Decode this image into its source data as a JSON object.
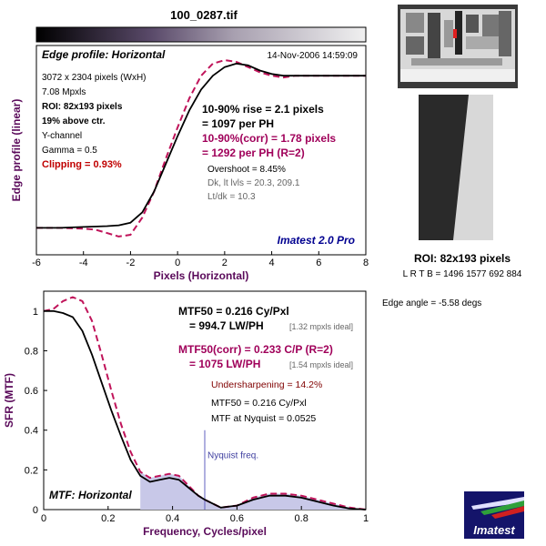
{
  "file_title": "100_0287.tif",
  "top_chart": {
    "panel_title": "Edge profile: Horizontal",
    "date": "14-Nov-2006 14:59:09",
    "info_lines": [
      {
        "text": "3072 x 2304 pixels (WxH)",
        "style": "normal"
      },
      {
        "text": "7.08 Mpxls",
        "style": "normal"
      },
      {
        "text": "ROI: 82x193 pixels",
        "style": "bold"
      },
      {
        "text": "19% above ctr.",
        "style": "bold"
      },
      {
        "text": "Y-channel",
        "style": "normal"
      },
      {
        "text": "Gamma = 0.5",
        "style": "normal"
      },
      {
        "text": "Clipping =  0.93%",
        "style": "red-bold"
      }
    ],
    "rise_lines": [
      {
        "text": "10-90% rise = 2.1 pixels",
        "style": "black-bold"
      },
      {
        "text": "= 1097 per PH",
        "style": "black-bold"
      },
      {
        "text": "10-90%(corr) = 1.78 pixels",
        "style": "magenta-bold"
      },
      {
        "text": "= 1292 per PH  (R=2)",
        "style": "magenta-bold"
      }
    ],
    "stats_lines": [
      {
        "text": "Overshoot = 8.45%",
        "style": "black"
      },
      {
        "text": "Dk, lt lvls = 20.3, 209.1",
        "style": "gray"
      },
      {
        "text": "Lt/dk = 10.3",
        "style": "gray"
      }
    ],
    "brand": "Imatest 2.0 Pro",
    "xlabel": "Pixels (Horizontal)",
    "ylabel": "Edge profile (linear)"
  },
  "bottom_chart": {
    "panel_title": "MTF: Horizontal",
    "nyquist_label": "Nyquist freq.",
    "xlabel": "Frequency, Cycles/pixel",
    "ylabel": "SFR (MTF)",
    "lines": [
      {
        "text": "MTF50 = 0.216 Cy/Pxl",
        "style": "black-bold"
      },
      {
        "text": "= 994.7 LW/PH",
        "style": "black-bold",
        "suffix": "[1.32 mpxls ideal]"
      },
      {
        "text": "MTF50(corr) = 0.233 C/P  (R=2)",
        "style": "magenta-bold"
      },
      {
        "text": "= 1075 LW/PH",
        "style": "magenta-bold",
        "suffix": "[1.54 mpxls ideal]"
      },
      {
        "text": "Undersharpening = 14.2%",
        "style": "darkred"
      },
      {
        "text": "MTF50 = 0.216 Cy/Pxl",
        "style": "black"
      },
      {
        "text": "MTF at Nyquist = 0.0525",
        "style": "black"
      }
    ]
  },
  "side_panel": {
    "roi_label": "ROI: 82x193 pixels",
    "lrtb": "L R  T B = 1496 1577  692 884",
    "edge_angle": "Edge angle = -5.58 degs",
    "logo_text": "Imatest"
  },
  "colors": {
    "measured": "#000000",
    "corrected": "#c0145a",
    "nyquist_line": "#6060c0",
    "mtf_fill": "#c8c8e8",
    "clipping_text": "#c00000",
    "magenta_text": "#a0005a"
  },
  "chart_data": [
    {
      "type": "line",
      "name": "edge-profile",
      "xlim": [
        -6,
        8
      ],
      "x_ticks": [
        "-6",
        "-4",
        "-2",
        "0",
        "2",
        "4",
        "6",
        "8"
      ],
      "x_tick_values": [
        -6,
        -4,
        -2,
        0,
        2,
        4,
        6,
        8
      ],
      "y_normalized_range": [
        0,
        1
      ],
      "grid": false,
      "series": [
        {
          "name": "measured",
          "x": [
            -6,
            -5,
            -4,
            -3,
            -2.5,
            -2,
            -1.5,
            -1,
            -0.5,
            0,
            0.5,
            1,
            1.5,
            2,
            2.5,
            3,
            3.5,
            4,
            4.5,
            5,
            6,
            7,
            8
          ],
          "y": [
            0.04,
            0.04,
            0.045,
            0.05,
            0.055,
            0.07,
            0.13,
            0.25,
            0.41,
            0.57,
            0.72,
            0.84,
            0.92,
            0.97,
            0.99,
            0.98,
            0.95,
            0.93,
            0.92,
            0.92,
            0.92,
            0.92,
            0.92
          ]
        },
        {
          "name": "corrected",
          "x": [
            -6,
            -5,
            -4,
            -3.5,
            -3,
            -2.5,
            -2,
            -1.5,
            -1,
            -0.5,
            0,
            0.5,
            1,
            1.5,
            2,
            2.5,
            3,
            3.5,
            4,
            4.5,
            5,
            6,
            7,
            8
          ],
          "y": [
            0.04,
            0.04,
            0.035,
            0.03,
            0.01,
            -0.01,
            0.0,
            0.1,
            0.25,
            0.44,
            0.62,
            0.79,
            0.92,
            0.99,
            1.01,
            1.0,
            0.97,
            0.94,
            0.92,
            0.91,
            0.92,
            0.92,
            0.92,
            0.92
          ]
        }
      ]
    },
    {
      "type": "line",
      "name": "mtf",
      "xlim": [
        0,
        1
      ],
      "ylim": [
        0,
        1.1
      ],
      "x_ticks": [
        "0",
        "0.2",
        "0.4",
        "0.6",
        "0.8",
        "1"
      ],
      "x_tick_values": [
        0,
        0.2,
        0.4,
        0.6,
        0.8,
        1
      ],
      "y_ticks": [
        "0",
        "0.2",
        "0.4",
        "0.6",
        "0.8",
        "1"
      ],
      "y_tick_values": [
        0,
        0.2,
        0.4,
        0.6,
        0.8,
        1
      ],
      "nyquist": 0.5,
      "grid": false,
      "series": [
        {
          "name": "measured",
          "x": [
            0,
            0.03,
            0.06,
            0.09,
            0.12,
            0.15,
            0.18,
            0.21,
            0.24,
            0.27,
            0.3,
            0.33,
            0.36,
            0.39,
            0.42,
            0.45,
            0.48,
            0.5,
            0.55,
            0.6,
            0.65,
            0.7,
            0.75,
            0.8,
            0.85,
            0.9,
            0.95,
            1.0
          ],
          "y": [
            1.0,
            1.0,
            0.99,
            0.97,
            0.9,
            0.78,
            0.64,
            0.5,
            0.37,
            0.25,
            0.17,
            0.14,
            0.15,
            0.16,
            0.15,
            0.11,
            0.07,
            0.05,
            0.01,
            0.02,
            0.05,
            0.07,
            0.07,
            0.06,
            0.04,
            0.02,
            0.005,
            0.0
          ]
        },
        {
          "name": "corrected",
          "x": [
            0,
            0.03,
            0.06,
            0.09,
            0.12,
            0.15,
            0.18,
            0.21,
            0.24,
            0.27,
            0.3,
            0.33,
            0.36,
            0.39,
            0.42,
            0.45,
            0.48,
            0.5,
            0.55,
            0.6,
            0.65,
            0.7,
            0.75,
            0.8,
            0.85,
            0.9,
            0.95,
            1.0
          ],
          "y": [
            1.0,
            1.01,
            1.05,
            1.07,
            1.05,
            0.95,
            0.78,
            0.6,
            0.43,
            0.29,
            0.19,
            0.16,
            0.17,
            0.18,
            0.17,
            0.12,
            0.07,
            0.05,
            0.01,
            0.02,
            0.06,
            0.08,
            0.08,
            0.07,
            0.05,
            0.03,
            0.01,
            0.0
          ]
        }
      ]
    }
  ]
}
